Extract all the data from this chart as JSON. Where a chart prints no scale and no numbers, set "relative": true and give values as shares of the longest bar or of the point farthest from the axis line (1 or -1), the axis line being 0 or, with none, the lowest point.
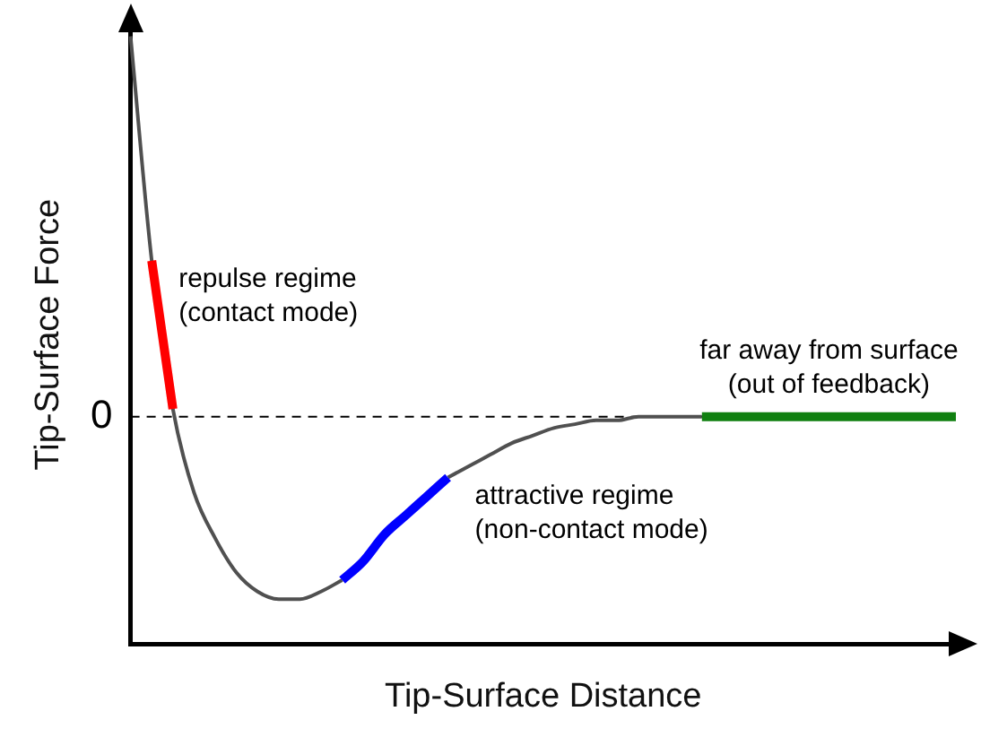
{
  "chart_data": {
    "type": "line",
    "xlabel": "Tip-Surface Distance",
    "ylabel": "Tip-Surface Force",
    "relative": true,
    "categories": [
      null,
      null,
      null,
      null,
      null,
      null,
      null,
      null,
      null,
      null,
      null,
      null,
      null,
      null,
      null,
      null,
      null,
      null,
      null,
      null,
      null,
      null,
      null,
      null,
      null,
      null,
      null,
      null,
      null,
      null,
      null,
      null,
      null,
      null,
      null,
      null,
      null,
      null,
      null,
      null
    ],
    "series": [
      {
        "color": "#505050",
        "values": [
          1,
          0.41,
          0.02,
          -0.2,
          -0.32,
          -0.41,
          -0.46,
          -0.48,
          -0.48,
          -0.46,
          -0.43,
          null,
          null,
          null,
          null,
          -0.16,
          -0.13,
          -0.1,
          -0.07,
          -0.05,
          -0.03,
          -0.02,
          -0.01,
          -0.01,
          0,
          0,
          0,
          0,
          null,
          null,
          null,
          null,
          null,
          null,
          null,
          null,
          null,
          null,
          null,
          null
        ]
      },
      {
        "name": "repulse regime (contact mode)",
        "color": "#ff0000",
        "values": [
          null,
          0.41,
          0.02,
          null,
          null,
          null,
          null,
          null,
          null,
          null,
          null,
          null,
          null,
          null,
          null,
          null,
          null,
          null,
          null,
          null,
          null,
          null,
          null,
          null,
          null,
          null,
          null,
          null,
          null,
          null,
          null,
          null,
          null,
          null,
          null,
          null,
          null,
          null,
          null,
          null
        ]
      },
      {
        "name": "attractive regime (non-contact mode)",
        "color": "#0000ff",
        "values": [
          null,
          null,
          null,
          null,
          null,
          null,
          null,
          null,
          null,
          null,
          -0.43,
          -0.38,
          -0.31,
          -0.26,
          -0.21,
          -0.16,
          null,
          null,
          null,
          null,
          null,
          null,
          null,
          null,
          null,
          null,
          null,
          null,
          null,
          null,
          null,
          null,
          null,
          null,
          null,
          null,
          null,
          null,
          null,
          null
        ]
      },
      {
        "name": "far away from surface (out of feedback)",
        "color": "#108010",
        "values": [
          null,
          null,
          null,
          null,
          null,
          null,
          null,
          null,
          null,
          null,
          null,
          null,
          null,
          null,
          null,
          null,
          null,
          null,
          null,
          null,
          null,
          null,
          null,
          null,
          null,
          null,
          null,
          0,
          0,
          0,
          0,
          0,
          0,
          0,
          0,
          0,
          0,
          0,
          0,
          0
        ]
      }
    ],
    "ref_lines": [
      {
        "axis": "y",
        "value": 0,
        "label": "0",
        "line_style": "dashed",
        "color": "#000000"
      }
    ]
  }
}
